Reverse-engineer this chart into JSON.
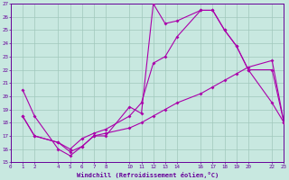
{
  "xlabel": "Windchill (Refroidissement éolien,°C)",
  "background_color": "#c8e8e0",
  "grid_color": "#a0c8bc",
  "line_color": "#aa00aa",
  "xlim": [
    0,
    23
  ],
  "ylim": [
    15,
    27
  ],
  "xticks": [
    0,
    1,
    2,
    4,
    5,
    6,
    7,
    8,
    10,
    11,
    12,
    13,
    14,
    16,
    17,
    18,
    19,
    20,
    22,
    23
  ],
  "yticks": [
    15,
    16,
    17,
    18,
    19,
    20,
    21,
    22,
    23,
    24,
    25,
    26,
    27
  ],
  "line1_x": [
    1,
    2,
    4,
    5,
    6,
    7,
    8,
    10,
    11,
    12,
    13,
    14,
    16,
    17,
    18,
    19,
    20,
    22,
    23
  ],
  "line1_y": [
    20.5,
    18.5,
    16.0,
    15.5,
    16.2,
    17.0,
    17.0,
    19.2,
    18.7,
    27.0,
    25.5,
    25.7,
    26.5,
    26.5,
    25.0,
    23.8,
    22.0,
    19.5,
    18.0
  ],
  "line2_x": [
    1,
    2,
    4,
    5,
    6,
    7,
    8,
    10,
    11,
    12,
    13,
    14,
    16,
    17,
    18,
    19,
    20,
    22,
    23
  ],
  "line2_y": [
    18.5,
    17.0,
    16.5,
    16.0,
    16.8,
    17.2,
    17.5,
    18.5,
    19.5,
    22.5,
    23.0,
    24.5,
    26.5,
    26.5,
    25.0,
    23.8,
    22.0,
    22.0,
    18.0
  ],
  "line3_x": [
    1,
    2,
    4,
    5,
    6,
    7,
    8,
    10,
    11,
    12,
    13,
    14,
    16,
    17,
    18,
    19,
    20,
    22,
    23
  ],
  "line3_y": [
    18.5,
    17.0,
    16.5,
    15.8,
    16.2,
    17.0,
    17.2,
    17.6,
    18.0,
    18.5,
    19.0,
    19.5,
    20.2,
    20.7,
    21.2,
    21.7,
    22.2,
    22.7,
    18.0
  ]
}
